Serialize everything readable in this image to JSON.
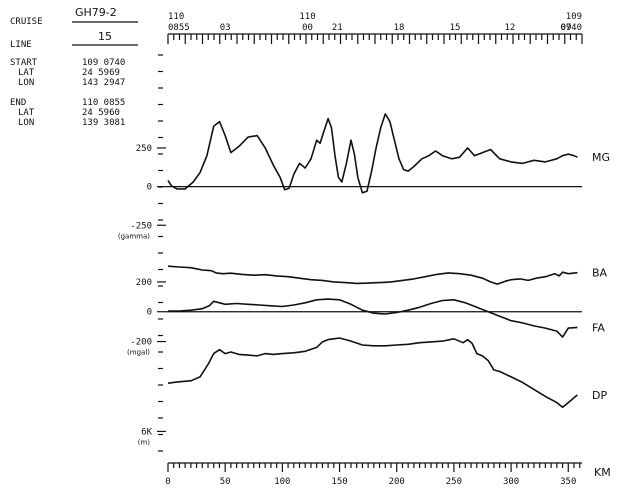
{
  "header": {
    "cruise_label": "CRUISE",
    "cruise_value": "GH79-2",
    "line_label": "LINE",
    "line_value": "15",
    "start_label": "START",
    "start_time": "109 0740",
    "start_lat_label": "LAT",
    "start_lat": "24 5969",
    "start_lon_label": "LON",
    "start_lon": "143 2947",
    "end_label": "END",
    "end_time": "110 0855",
    "end_lat_label": "LAT",
    "end_lat": "24 5960",
    "end_lon_label": "LON",
    "end_lon": "139 3081"
  },
  "time_axis": {
    "ticks": [
      {
        "km": 0,
        "top": "110",
        "bottom": "0855"
      },
      {
        "km": 50,
        "top": "",
        "bottom": "03"
      },
      {
        "km": 122,
        "top": "110",
        "bottom": "00"
      },
      {
        "km": 148,
        "top": "",
        "bottom": "21"
      },
      {
        "km": 202,
        "top": "",
        "bottom": "18"
      },
      {
        "km": 251,
        "top": "",
        "bottom": "15"
      },
      {
        "km": 299,
        "top": "",
        "bottom": "12"
      },
      {
        "km": 348,
        "top": "",
        "bottom": "09"
      },
      {
        "km": 362,
        "top": "109",
        "bottom": "0740"
      }
    ]
  },
  "chart_data": {
    "type": "line",
    "xlabel": "KM",
    "xlim": [
      0,
      362
    ],
    "x_ticks": [
      0,
      50,
      100,
      150,
      200,
      250,
      300,
      350
    ],
    "panels": [
      {
        "name": "magnetics",
        "ylim": [
          -410,
          560
        ],
        "y_ticks": [
          {
            "value": 250,
            "label": "250"
          },
          {
            "value": 0,
            "label": "0"
          },
          {
            "value": -250,
            "label": "-250"
          }
        ],
        "unit": "(gamma)",
        "series": [
          {
            "name": "MG",
            "x": [
              0,
              3,
              8,
              15,
              22,
              28,
              34,
              40,
              45,
              50,
              55,
              62,
              70,
              78,
              85,
              92,
              98,
              102,
              106,
              110,
              115,
              120,
              125,
              130,
              133,
              136,
              140,
              143,
              146,
              149,
              152,
              156,
              160,
              163,
              166,
              170,
              174,
              178,
              182,
              186,
              190,
              194,
              198,
              202,
              206,
              210,
              215,
              222,
              228,
              234,
              240,
              248,
              255,
              262,
              268,
              275,
              282,
              290,
              300,
              310,
              320,
              330,
              340,
              345,
              350,
              355,
              358
            ],
            "y": [
              40,
              5,
              -15,
              -15,
              30,
              90,
              200,
              390,
              420,
              330,
              220,
              260,
              320,
              330,
              250,
              140,
              60,
              -20,
              -10,
              80,
              150,
              120,
              180,
              300,
              280,
              350,
              440,
              380,
              200,
              60,
              30,
              150,
              300,
              210,
              60,
              -40,
              -30,
              100,
              250,
              380,
              470,
              420,
              300,
              180,
              110,
              100,
              130,
              180,
              200,
              230,
              200,
              180,
              190,
              250,
              200,
              220,
              240,
              180,
              160,
              150,
              170,
              160,
              180,
              200,
              210,
              200,
              190
            ]
          }
        ]
      },
      {
        "name": "gravity",
        "ylim": [
          -270,
          320
        ],
        "y_ticks": [
          {
            "value": 200,
            "label": "200"
          },
          {
            "value": 0,
            "label": "0"
          },
          {
            "value": -200,
            "label": "-200"
          }
        ],
        "unit": "(mgal)",
        "series": [
          {
            "name": "BA",
            "x": [
              0,
              10,
              20,
              30,
              38,
              42,
              48,
              55,
              65,
              75,
              85,
              95,
              105,
              115,
              125,
              135,
              145,
              155,
              165,
              175,
              185,
              195,
              205,
              215,
              225,
              235,
              245,
              255,
              265,
              275,
              282,
              288,
              295,
              300,
              308,
              315,
              322,
              330,
              338,
              342,
              345,
              350,
              358
            ],
            "y": [
              305,
              300,
              295,
              280,
              275,
              260,
              255,
              258,
              250,
              245,
              248,
              240,
              235,
              225,
              215,
              210,
              200,
              195,
              190,
              192,
              195,
              200,
              210,
              220,
              235,
              250,
              260,
              255,
              245,
              225,
              200,
              185,
              205,
              215,
              220,
              210,
              225,
              235,
              255,
              240,
              265,
              255,
              262
            ]
          },
          {
            "name": "FA",
            "x": [
              0,
              10,
              20,
              30,
              36,
              40,
              45,
              50,
              60,
              70,
              80,
              90,
              100,
              110,
              120,
              130,
              140,
              150,
              160,
              170,
              180,
              190,
              200,
              210,
              220,
              230,
              240,
              250,
              260,
              270,
              280,
              290,
              300,
              310,
              320,
              330,
              340,
              345,
              350,
              358
            ],
            "y": [
              5,
              5,
              10,
              20,
              40,
              70,
              60,
              50,
              55,
              50,
              45,
              40,
              35,
              45,
              60,
              80,
              85,
              80,
              50,
              10,
              -10,
              -15,
              -5,
              10,
              30,
              55,
              75,
              80,
              60,
              30,
              0,
              -30,
              -60,
              -75,
              -95,
              -110,
              -130,
              -170,
              -110,
              -105
            ]
          }
        ]
      },
      {
        "name": "depth",
        "ylim": [
          6550,
          -1800
        ],
        "y_ticks": [
          {
            "value": 6000,
            "label": "6K"
          }
        ],
        "unit": "(m)",
        "series": [
          {
            "name": "DP",
            "x": [
              0,
              5,
              12,
              20,
              28,
              35,
              40,
              45,
              50,
              55,
              62,
              70,
              78,
              85,
              92,
              100,
              110,
              120,
              130,
              135,
              140,
              145,
              150,
              160,
              170,
              180,
              190,
              200,
              210,
              220,
              230,
              240,
              250,
              258,
              262,
              266,
              270,
              275,
              280,
              285,
              290,
              300,
              310,
              320,
              330,
              340,
              345,
              350,
              358
            ],
            "y": [
              2900,
              2850,
              2800,
              2750,
              2500,
              1700,
              1000,
              750,
              1000,
              900,
              1050,
              1100,
              1150,
              1000,
              1050,
              1000,
              950,
              850,
              600,
              250,
              100,
              50,
              0,
              200,
              450,
              500,
              500,
              450,
              400,
              300,
              250,
              200,
              50,
              300,
              100,
              350,
              1000,
              1150,
              1450,
              2050,
              2150,
              2500,
              2850,
              3300,
              3750,
              4150,
              4450,
              4150,
              3650
            ]
          }
        ]
      }
    ]
  }
}
